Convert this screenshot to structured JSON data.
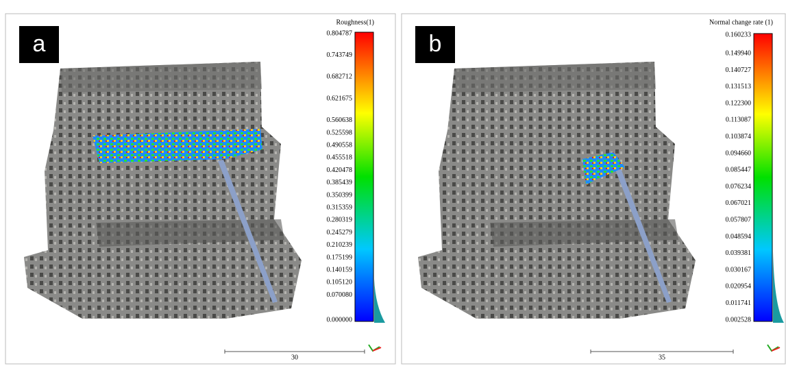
{
  "panels": [
    {
      "label": "a",
      "scalar_title": "Roughness(1)",
      "ticks": [
        "0.804787",
        "0.743749",
        "0.682712",
        "0.621675",
        "0.560638",
        "0.525598",
        "0.490558",
        "0.455518",
        "0.420478",
        "0.385439",
        "0.350399",
        "0.315359",
        "0.280319",
        "0.245279",
        "0.210239",
        "0.175199",
        "0.140159",
        "0.105120",
        "0.070080",
        "0.000000"
      ],
      "scale_label": "30"
    },
    {
      "label": "b",
      "scalar_title": "Normal change rate (1)",
      "ticks": [
        "0.160233",
        "0.149940",
        "0.140727",
        "0.131513",
        "0.122300",
        "0.113087",
        "0.103874",
        "0.094660",
        "0.085447",
        "0.076234",
        "0.067021",
        "0.057807",
        "0.048594",
        "0.039381",
        "0.030167",
        "0.020954",
        "0.011741",
        "0.002528"
      ],
      "scale_label": "35"
    }
  ]
}
